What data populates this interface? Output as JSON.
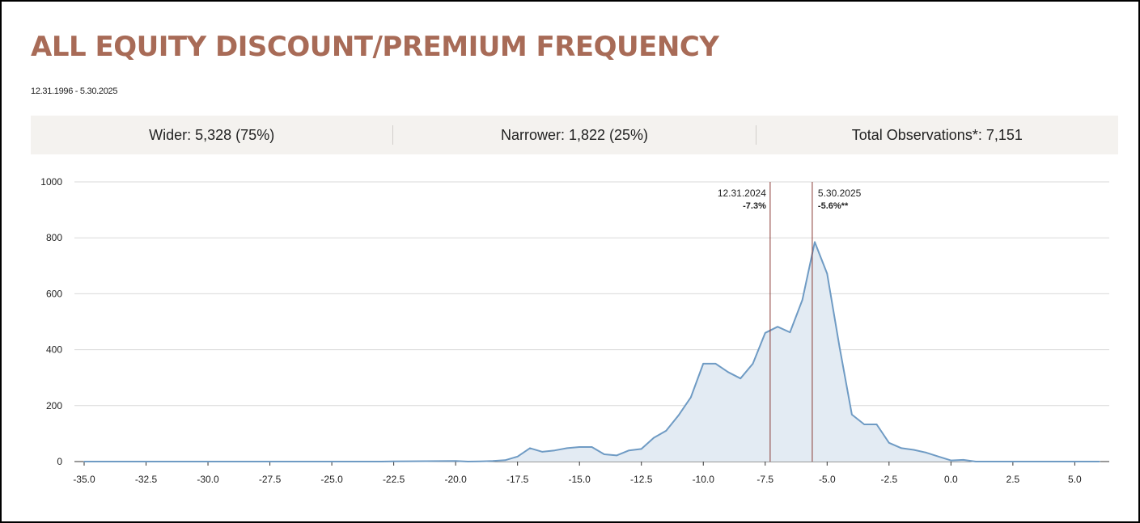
{
  "title": "ALL EQUITY DISCOUNT/PREMIUM FREQUENCY",
  "date_range": "12.31.1996 - 5.30.2025",
  "stats": [
    {
      "label": "Wider: 5,328 (75%)"
    },
    {
      "label": "Narrower: 1,822 (25%)"
    },
    {
      "label": "Total Observations*: 7,151"
    }
  ],
  "colors": {
    "title": "#a86b57",
    "line": "#6f9bc4",
    "fill": "#e3ebf3",
    "marker": "#8a3b36",
    "grid": "#d9d9d9",
    "stats_background": "#f4f2ef"
  },
  "chart_data": {
    "type": "area",
    "title": "",
    "xlabel": "",
    "ylabel": "",
    "xlim": [
      -35.0,
      6.0
    ],
    "ylim": [
      0,
      1000
    ],
    "x_ticks": [
      -35.0,
      -32.5,
      -30.0,
      -27.5,
      -25.0,
      -22.5,
      -20.0,
      -17.5,
      -15.0,
      -12.5,
      -10.0,
      -7.5,
      -5.0,
      -2.5,
      0.0,
      2.5,
      5.0
    ],
    "x_tick_labels": [
      "-35.0",
      "-32.5",
      "-30.0",
      "-27.5",
      "-25.0",
      "-22.5",
      "-20.0",
      "-17.5",
      "-15.0",
      "-12.5",
      "-10.0",
      "-7.5",
      "-5.0",
      "-2.5",
      "0.0",
      "2.5",
      "5.0"
    ],
    "y_ticks": [
      0,
      200,
      400,
      600,
      800,
      1000
    ],
    "y_tick_labels": [
      "0",
      "200",
      "400",
      "600",
      "800",
      "1000"
    ],
    "grid": true,
    "legend": "none",
    "x": [
      -35.0,
      -23.0,
      -22.5,
      -20.0,
      -19.5,
      -19.0,
      -18.5,
      -18.0,
      -17.5,
      -17.0,
      -16.5,
      -16.0,
      -15.5,
      -15.0,
      -14.5,
      -14.0,
      -13.5,
      -13.0,
      -12.5,
      -12.0,
      -11.5,
      -11.0,
      -10.5,
      -10.0,
      -9.5,
      -9.0,
      -8.5,
      -8.0,
      -7.5,
      -7.0,
      -6.5,
      -6.0,
      -5.5,
      -5.0,
      -4.5,
      -4.0,
      -3.5,
      -3.0,
      -2.5,
      -2.0,
      -1.5,
      -1.0,
      -0.5,
      0.0,
      0.5,
      1.0,
      1.5,
      6.0
    ],
    "y": [
      0,
      0,
      1,
      2,
      0,
      1,
      2,
      5,
      18,
      48,
      35,
      40,
      48,
      52,
      52,
      26,
      22,
      40,
      45,
      85,
      110,
      165,
      230,
      350,
      350,
      320,
      297,
      350,
      460,
      482,
      462,
      578,
      785,
      672,
      410,
      168,
      133,
      133,
      67,
      48,
      42,
      32,
      18,
      4,
      6,
      0,
      0,
      0
    ],
    "annotations": [
      {
        "x": -7.3,
        "date": "12.31.2024",
        "value": "-7.3%",
        "align": "left"
      },
      {
        "x": -5.6,
        "date": "5.30.2025",
        "value": "-5.6%**",
        "align": "right"
      }
    ]
  }
}
